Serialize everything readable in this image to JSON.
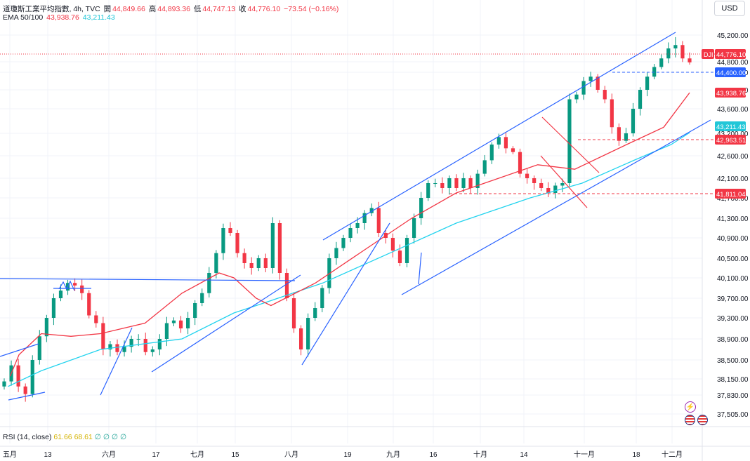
{
  "header": {
    "symbol_title": "道瓊斯工業平均指數, 4h, TVC",
    "open_label": "開",
    "open": "44,849.66",
    "high_label": "高",
    "high": "44,893.36",
    "low_label": "低",
    "low": "44,747.13",
    "close_label": "收",
    "close": "44,776.10",
    "change": "−73.54 (−0.16%)",
    "ema_title": "EMA 50/100",
    "ema50": "43,938.76",
    "ema100": "43,211.43"
  },
  "currency_button": "USD",
  "rsi": {
    "title": "RSI (14, close)",
    "value1": "61.66",
    "value2": "68.61",
    "placeholders": "∅ ∅ ∅ ∅"
  },
  "icons": [
    "bolt-icon",
    "us-flag-icon",
    "us-flag-icon"
  ],
  "colors": {
    "up": "#089981",
    "down": "#f23645",
    "trendline": "#2962ff",
    "ema50": "#f23645",
    "ema100": "#22d3ee"
  },
  "chart_data": {
    "type": "candlestick",
    "y_ticks": [
      "45,200.00",
      "44,800.00",
      "44,400.00",
      "44,000.00",
      "43,600.00",
      "43,200.00",
      "42,600.00",
      "42,100.00",
      "41,700.00",
      "41,300.00",
      "40,900.00",
      "40,500.00",
      "40,100.00",
      "39,700.00",
      "39,300.00",
      "38,900.00",
      "38,500.00",
      "38,150.00",
      "37,830.00",
      "37,505.00"
    ],
    "x_ticks": [
      "五月",
      "13",
      "六月",
      "17",
      "七月",
      "15",
      "八月",
      "19",
      "九月",
      "16",
      "十月",
      "14",
      "十一月",
      "18",
      "十二月"
    ],
    "price_labels": [
      {
        "name": "current-price-label",
        "prefix": "DJI",
        "text": "44,776.10",
        "value": 44776.1,
        "color": "#f23645"
      },
      {
        "name": "level-44400-label",
        "text": "44,400.00",
        "value": 44400,
        "color": "#2962ff"
      },
      {
        "name": "ema50-label",
        "text": "43,938.76",
        "value": 43938.76,
        "color": "#f23645"
      },
      {
        "name": "ema100-label",
        "text": "43,211.43",
        "value": 43211.43,
        "color": "#22c7d8"
      },
      {
        "name": "level-42963-label",
        "text": "42,963.51",
        "value": 42963.51,
        "color": "#f23645"
      },
      {
        "name": "level-41811-label",
        "text": "41,811.04",
        "value": 41811.04,
        "color": "#f23645"
      }
    ],
    "close_path": [
      [
        "五月",
        38100
      ],
      [
        "五月",
        38400
      ],
      [
        null,
        38000
      ],
      [
        null,
        37850
      ],
      [
        "",
        38500
      ],
      [
        null,
        38950
      ],
      [
        null,
        39300
      ],
      [
        null,
        39700
      ],
      [
        "13",
        39850
      ],
      [
        null,
        40000
      ],
      [
        null,
        39950
      ],
      [
        null,
        39800
      ],
      [
        null,
        39350
      ],
      [
        null,
        39200
      ],
      [
        null,
        38700
      ],
      [
        "六月",
        38800
      ],
      [
        null,
        38650
      ],
      [
        null,
        38750
      ],
      [
        null,
        38900
      ],
      [
        null,
        38900
      ],
      [
        null,
        38650
      ],
      [
        "17",
        38700
      ],
      [
        null,
        38900
      ],
      [
        null,
        39200
      ],
      [
        null,
        39250
      ],
      [
        null,
        39100
      ],
      [
        null,
        39300
      ],
      [
        null,
        39600
      ],
      [
        "七月",
        39800
      ],
      [
        null,
        40200
      ],
      [
        null,
        40600
      ],
      [
        null,
        41100
      ],
      [
        "15",
        41000
      ],
      [
        null,
        40600
      ],
      [
        null,
        40400
      ],
      [
        null,
        40300
      ],
      [
        null,
        40500
      ],
      [
        null,
        40300
      ],
      [
        null,
        41200
      ],
      [
        "八月",
        40200
      ],
      [
        null,
        39700
      ],
      [
        null,
        39100
      ],
      [
        null,
        38700
      ],
      [
        null,
        39300
      ],
      [
        null,
        39500
      ],
      [
        null,
        39900
      ],
      [
        "19",
        40500
      ],
      [
        null,
        40700
      ],
      [
        null,
        40900
      ],
      [
        null,
        41100
      ],
      [
        null,
        41200
      ],
      [
        null,
        41400
      ],
      [
        "九月",
        41500
      ],
      [
        null,
        41000
      ],
      [
        null,
        40900
      ],
      [
        null,
        40650
      ],
      [
        null,
        40400
      ],
      [
        "16",
        40900
      ],
      [
        null,
        41300
      ],
      [
        null,
        41700
      ],
      [
        null,
        42000
      ],
      [
        null,
        42000
      ],
      [
        null,
        41900
      ],
      [
        "十月",
        42100
      ],
      [
        null,
        41900
      ],
      [
        null,
        42100
      ],
      [
        null,
        41900
      ],
      [
        null,
        42200
      ],
      [
        null,
        42500
      ],
      [
        "14",
        42900
      ],
      [
        null,
        43100
      ],
      [
        null,
        42800
      ],
      [
        null,
        42700
      ],
      [
        null,
        42200
      ],
      [
        null,
        42100
      ],
      [
        null,
        42000
      ],
      [
        null,
        41900
      ],
      [
        "十一月",
        41800
      ],
      [
        null,
        41950
      ],
      [
        null,
        42000
      ],
      [
        null,
        43800
      ],
      [
        null,
        43900
      ],
      [
        null,
        44200
      ],
      [
        null,
        44300
      ],
      [
        null,
        44000
      ],
      [
        null,
        43800
      ],
      [
        "18",
        43300
      ],
      [
        null,
        43000
      ],
      [
        null,
        43200
      ],
      [
        null,
        43600
      ],
      [
        null,
        44000
      ],
      [
        null,
        44300
      ],
      [
        null,
        44600
      ],
      [
        "十二月",
        44850
      ],
      [
        null,
        45000
      ],
      [
        null,
        45050
      ],
      [
        null,
        44850
      ],
      [
        null,
        44776.1
      ]
    ],
    "ema50_points": [
      [
        38200,
        0.08
      ],
      [
        38600,
        0.2
      ],
      [
        39000,
        0.5
      ],
      [
        38950,
        0.9
      ],
      [
        39000,
        1.3
      ],
      [
        39200,
        1.9
      ],
      [
        39800,
        2.4
      ],
      [
        40200,
        2.9
      ],
      [
        40100,
        3.1
      ],
      [
        39700,
        3.4
      ],
      [
        39550,
        3.6
      ],
      [
        40000,
        4.2
      ],
      [
        40700,
        4.9
      ],
      [
        41300,
        5.5
      ],
      [
        41800,
        6.1
      ],
      [
        42400,
        7.2
      ],
      [
        42300,
        7.7
      ],
      [
        42900,
        8.4
      ],
      [
        43300,
        8.9
      ],
      [
        43938.76,
        9.25
      ]
    ],
    "ema100_points": [
      [
        38000,
        0.05
      ],
      [
        38300,
        0.5
      ],
      [
        38700,
        1.3
      ],
      [
        38900,
        2.4
      ],
      [
        39400,
        3.1
      ],
      [
        39600,
        3.5
      ],
      [
        40000,
        4.3
      ],
      [
        40600,
        5.2
      ],
      [
        41200,
        6.1
      ],
      [
        41700,
        7.1
      ],
      [
        42000,
        7.8
      ],
      [
        42500,
        8.5
      ],
      [
        42900,
        9.0
      ],
      [
        43211.43,
        9.25
      ]
    ]
  }
}
